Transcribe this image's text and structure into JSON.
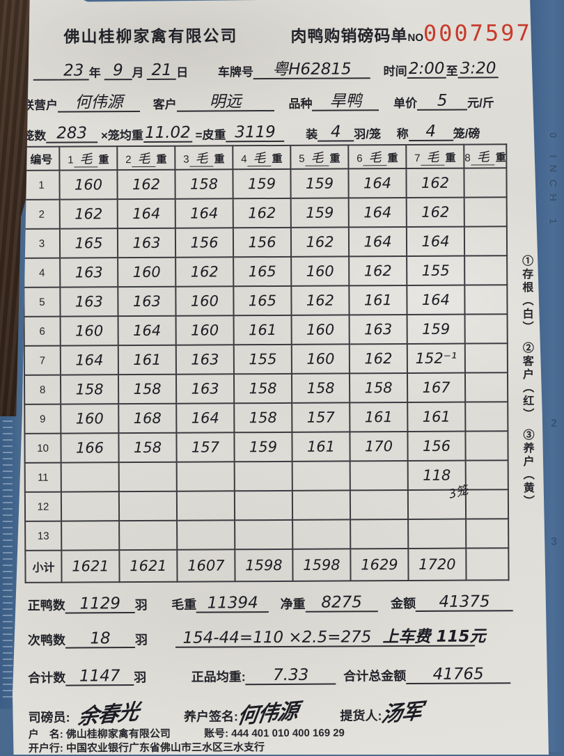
{
  "background": {
    "ruler_text": "0 INCH 1",
    "ruler_num2": "2",
    "ruler_num3": "3"
  },
  "header": {
    "company": "佛山桂柳家禽有限公司",
    "form_title": "肉鸭购销磅码单",
    "no_label": "NO",
    "serial_number": "0007597",
    "serial_color": "#c7392b"
  },
  "info": {
    "year": "23",
    "year_label": "年",
    "month": "9",
    "month_label": "月",
    "day": "21",
    "day_label": "日",
    "plate_label": "车牌号",
    "plate": "粤H62815",
    "time_label": "时间",
    "time_start": "2:00",
    "to_label": "至",
    "time_end": "3:20",
    "partner_label": "联营户",
    "partner": "何伟源",
    "customer_label": "客户",
    "customer": "明远",
    "breed_label": "品种",
    "breed": "旱鸭",
    "price_label": "单价",
    "price": "5",
    "price_unit": "元/斤",
    "cage_count_label": "笼数",
    "cage_count": "283",
    "cage_avg_label": "×笼均重",
    "cage_avg": "11.02",
    "tare_label": "=皮重",
    "tare": "3119",
    "load_label": "装",
    "load": "4",
    "load_unit": "羽/笼",
    "weigh_label": "称",
    "weigh": "4",
    "weigh_unit": "笼/磅"
  },
  "table": {
    "corner_label": "编号",
    "columns": [
      {
        "num": "1",
        "mid": "毛",
        "suffix": "重"
      },
      {
        "num": "2",
        "mid": "毛",
        "suffix": "重"
      },
      {
        "num": "3",
        "mid": "毛",
        "suffix": "重"
      },
      {
        "num": "4",
        "mid": "毛",
        "suffix": "重"
      },
      {
        "num": "5",
        "mid": "毛",
        "suffix": "重"
      },
      {
        "num": "6",
        "mid": "毛",
        "suffix": "重"
      },
      {
        "num": "7",
        "mid": "毛",
        "suffix": "重"
      },
      {
        "num": "8",
        "mid": "毛",
        "suffix": "重"
      }
    ],
    "rows": [
      {
        "no": "1",
        "cells": [
          "160",
          "162",
          "158",
          "159",
          "159",
          "164",
          "162",
          ""
        ]
      },
      {
        "no": "2",
        "cells": [
          "162",
          "164",
          "164",
          "162",
          "159",
          "164",
          "162",
          ""
        ]
      },
      {
        "no": "3",
        "cells": [
          "165",
          "163",
          "156",
          "156",
          "162",
          "164",
          "164",
          ""
        ]
      },
      {
        "no": "4",
        "cells": [
          "163",
          "160",
          "162",
          "165",
          "160",
          "162",
          "155",
          ""
        ]
      },
      {
        "no": "5",
        "cells": [
          "163",
          "163",
          "160",
          "165",
          "162",
          "161",
          "164",
          ""
        ]
      },
      {
        "no": "6",
        "cells": [
          "160",
          "164",
          "160",
          "161",
          "160",
          "163",
          "159",
          ""
        ]
      },
      {
        "no": "7",
        "cells": [
          "164",
          "161",
          "163",
          "155",
          "160",
          "162",
          "152⁻¹",
          ""
        ]
      },
      {
        "no": "8",
        "cells": [
          "158",
          "158",
          "163",
          "158",
          "158",
          "158",
          "167",
          ""
        ]
      },
      {
        "no": "9",
        "cells": [
          "160",
          "168",
          "164",
          "158",
          "157",
          "161",
          "161",
          ""
        ]
      },
      {
        "no": "10",
        "cells": [
          "166",
          "158",
          "157",
          "159",
          "161",
          "170",
          "156",
          ""
        ]
      },
      {
        "no": "11",
        "cells": [
          "",
          "",
          "",
          "",
          "",
          "",
          "118",
          ""
        ],
        "note": "3笼",
        "note_col": 6
      },
      {
        "no": "12",
        "cells": [
          "",
          "",
          "",
          "",
          "",
          "",
          "",
          ""
        ]
      },
      {
        "no": "13",
        "cells": [
          "",
          "",
          "",
          "",
          "",
          "",
          "",
          ""
        ]
      }
    ],
    "subtotal_label": "小计",
    "subtotal_cells": [
      "1621",
      "1621",
      "1607",
      "1598",
      "1598",
      "1629",
      "1720",
      ""
    ]
  },
  "side_note": "①存根（白）　②客户（红）　③养户（黄）",
  "summary": {
    "zheng_label": "正鸭数",
    "zheng": "1129",
    "yu_unit": "羽",
    "gross_label": "毛重",
    "gross": "11394",
    "net_label": "净重",
    "net": "8275",
    "amount_label": "金额",
    "amount": "41375",
    "ci_label": "次鸭数",
    "ci": "18",
    "calc_note": "154-44=110 ×2.5=275",
    "fee_note": "上车费 115元",
    "total_label": "合计数",
    "total": "1147",
    "avg_label": "正品均重:",
    "avg": "7.33",
    "grand_label": "合计总金额",
    "grand": "41765",
    "weigher_label": "司磅员:",
    "weigher_sign": "余春光",
    "farmer_label": "养户签名:",
    "farmer_sign": "何伟源",
    "picker_label": "提货人:",
    "picker_sign": "汤军"
  },
  "footer": {
    "account_name_label": "户　名:",
    "account_name": "佛山桂柳家禽有限公司",
    "account_no_label": "账号:",
    "account_no": "444 401 010 400 169 29",
    "bank_label": "开户行:",
    "bank": "中国农业银行广东省佛山市三水区三水支行"
  }
}
